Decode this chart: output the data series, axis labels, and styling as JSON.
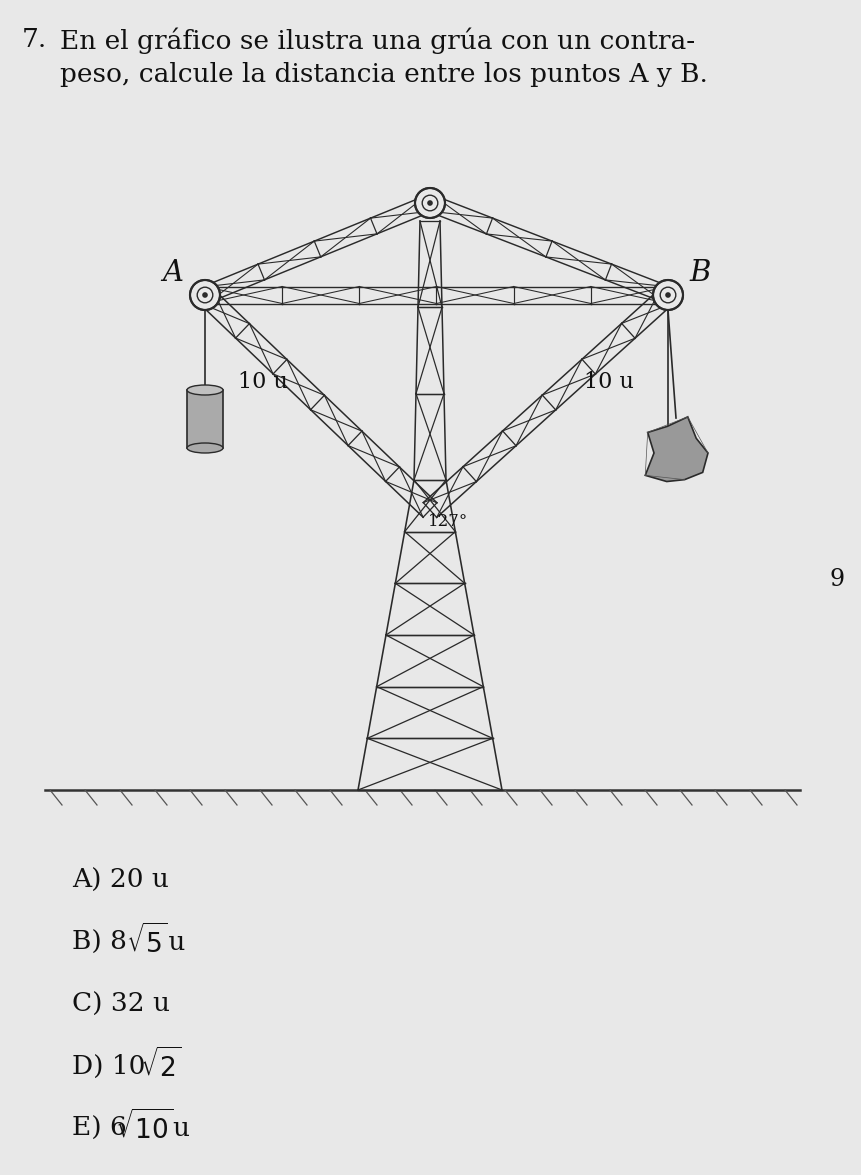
{
  "bg_color": "#e8e8e8",
  "title_number": "7.",
  "title_line1": "En el gráfico se ilustra una grúa con un contra-",
  "title_line2": "peso, calcule la distancia entre los puntos A y B.",
  "label_A": "A",
  "label_B": "B",
  "label_10u_left": "10 u",
  "label_10u_right": "10 u",
  "label_angle": "127°",
  "answer_A": "A) 20 u",
  "answer_C": "C) 32 u",
  "page_num": "9",
  "text_color": "#111111",
  "crane_color": "#2a2a2a"
}
